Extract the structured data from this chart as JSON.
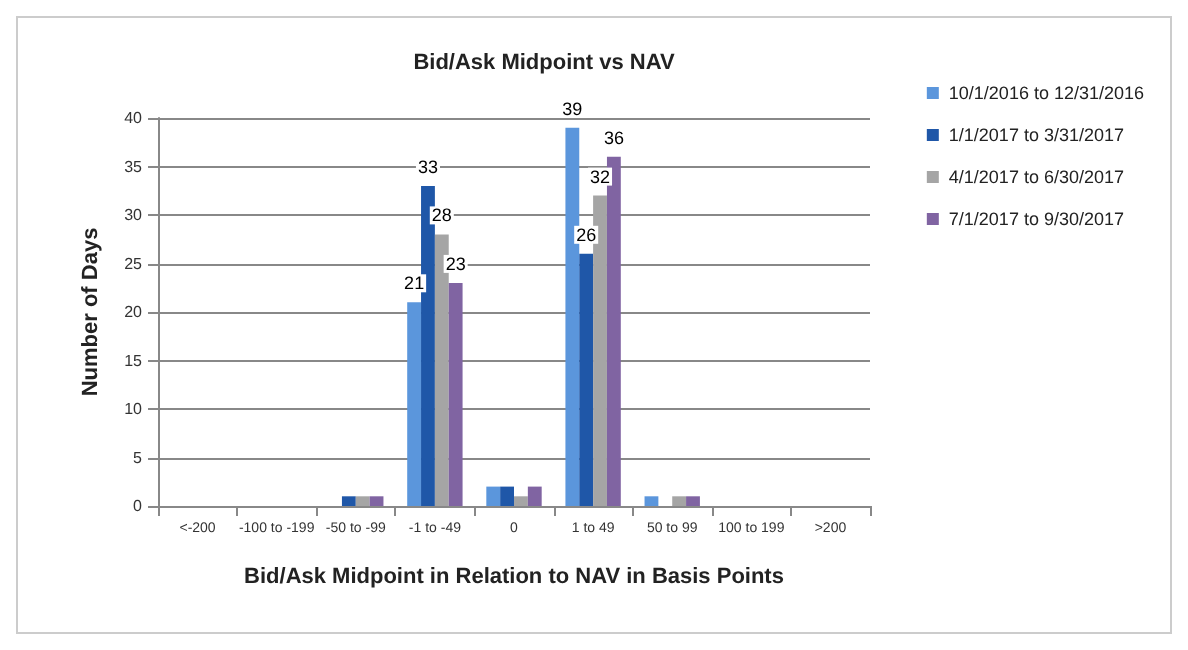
{
  "chart_data": {
    "type": "bar",
    "title": "Bid/Ask Midpoint vs NAV",
    "xlabel": "Bid/Ask Midpoint in Relation to NAV in Basis Points",
    "ylabel": "Number of Days",
    "categories": [
      "<-200",
      "-100 to -199",
      "-50 to -99",
      "-1 to -49",
      "0",
      "1 to 49",
      "50 to 99",
      "100 to 199",
      ">200"
    ],
    "series": [
      {
        "name": "10/1/2016 to 12/31/2016",
        "color": "#5b96dc",
        "values": [
          0,
          0,
          0,
          21,
          2,
          39,
          1,
          0,
          0
        ],
        "value_labels": [
          null,
          null,
          null,
          "21",
          null,
          "39",
          null,
          null,
          null
        ]
      },
      {
        "name": "1/1/2017 to 3/31/2017",
        "color": "#1f57a8",
        "values": [
          0,
          0,
          1,
          33,
          2,
          26,
          0,
          0,
          0
        ],
        "value_labels": [
          null,
          null,
          null,
          "33",
          null,
          "26",
          null,
          null,
          null
        ]
      },
      {
        "name": "4/1/2017 to 6/30/2017",
        "color": "#a5a5a5",
        "values": [
          0,
          0,
          1,
          28,
          1,
          32,
          1,
          0,
          0
        ],
        "value_labels": [
          null,
          null,
          null,
          "28",
          null,
          "32",
          null,
          null,
          null
        ]
      },
      {
        "name": "7/1/2017 to 9/30/2017",
        "color": "#8064a2",
        "values": [
          0,
          0,
          1,
          23,
          2,
          36,
          1,
          0,
          0
        ],
        "value_labels": [
          null,
          null,
          null,
          "23",
          null,
          "36",
          null,
          null,
          null
        ]
      }
    ],
    "ylim": [
      0,
      40
    ],
    "yticks": [
      0,
      5,
      10,
      15,
      20,
      25,
      30,
      35,
      40
    ],
    "grid": "y",
    "legend": "right"
  }
}
